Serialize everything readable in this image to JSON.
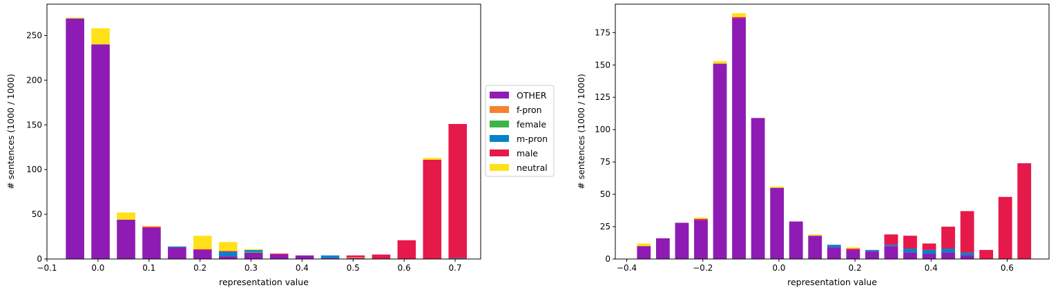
{
  "colors": {
    "OTHER": "#8e1cb4",
    "f-pron": "#f58231",
    "female": "#3cb44b",
    "m-pron": "#0782c8",
    "male": "#e6194b",
    "neutral": "#ffe119"
  },
  "legend": {
    "placement": "right of left chart",
    "entries": [
      "OTHER",
      "f-pron",
      "female",
      "m-pron",
      "male",
      "neutral"
    ]
  },
  "chart_data": [
    {
      "type": "bar",
      "stacked": true,
      "title": "",
      "xlabel": "representation value",
      "ylabel": "# sentences (1000 / 1000)",
      "xlim": [
        -0.1,
        0.75
      ],
      "ylim": [
        0,
        285
      ],
      "xticks": [
        "−0.1",
        "0.0",
        "0.1",
        "0.2",
        "0.3",
        "0.4",
        "0.5",
        "0.6",
        "0.7"
      ],
      "xtick_values": [
        -0.1,
        0.0,
        0.1,
        0.2,
        0.3,
        0.4,
        0.5,
        0.6,
        0.7
      ],
      "yticks": [
        "0",
        "50",
        "100",
        "150",
        "200",
        "250"
      ],
      "ytick_values": [
        0,
        50,
        100,
        150,
        200,
        250
      ],
      "bar_width": 0.036,
      "x": [
        -0.045,
        0.005,
        0.055,
        0.105,
        0.155,
        0.205,
        0.255,
        0.305,
        0.355,
        0.405,
        0.455,
        0.505,
        0.555,
        0.605,
        0.655,
        0.705
      ],
      "series": [
        {
          "name": "OTHER",
          "values": [
            269,
            240,
            44,
            35,
            13,
            10,
            3,
            7,
            5,
            4,
            1,
            1,
            0,
            0,
            0,
            0
          ]
        },
        {
          "name": "f-pron",
          "values": [
            0,
            0,
            0,
            0,
            0,
            0,
            0,
            0,
            0,
            0,
            0,
            1,
            0,
            0,
            0,
            0
          ]
        },
        {
          "name": "female",
          "values": [
            0,
            0,
            0,
            0,
            0,
            0,
            0,
            1,
            0,
            0,
            0,
            0,
            0,
            0,
            0,
            0
          ]
        },
        {
          "name": "m-pron",
          "values": [
            0,
            0,
            0,
            0,
            1,
            0,
            5,
            2,
            0,
            0,
            3,
            0,
            0,
            0,
            0,
            1
          ]
        },
        {
          "name": "male",
          "values": [
            0,
            0,
            0,
            1,
            0,
            1,
            1,
            0,
            1,
            0,
            0,
            2,
            5,
            21,
            111,
            150
          ]
        },
        {
          "name": "neutral",
          "values": [
            1,
            18,
            8,
            1,
            0,
            15,
            10,
            1,
            0,
            0,
            0,
            0,
            0,
            0,
            2,
            0
          ]
        }
      ]
    },
    {
      "type": "bar",
      "stacked": true,
      "title": "",
      "xlabel": "representation value",
      "ylabel": "# sentences (1000 / 1000)",
      "xlim": [
        -0.43,
        0.71
      ],
      "ylim": [
        0,
        197
      ],
      "xticks": [
        "−0.4",
        "−0.2",
        "0.0",
        "0.2",
        "0.4",
        "0.6"
      ],
      "xtick_values": [
        -0.4,
        -0.2,
        0.0,
        0.2,
        0.4,
        0.6
      ],
      "yticks": [
        "0",
        "25",
        "50",
        "75",
        "100",
        "125",
        "150",
        "175"
      ],
      "ytick_values": [
        0,
        25,
        50,
        75,
        100,
        125,
        150,
        175
      ],
      "bar_width": 0.036,
      "x": [
        -0.355,
        -0.305,
        -0.255,
        -0.205,
        -0.155,
        -0.105,
        -0.055,
        -0.005,
        0.045,
        0.095,
        0.145,
        0.195,
        0.245,
        0.295,
        0.345,
        0.395,
        0.445,
        0.495,
        0.545,
        0.595,
        0.645
      ],
      "series": [
        {
          "name": "OTHER",
          "values": [
            10,
            16,
            28,
            30,
            151,
            186,
            109,
            55,
            29,
            18,
            9,
            7,
            6,
            10,
            5,
            4,
            5,
            3,
            0,
            0,
            0
          ]
        },
        {
          "name": "f-pron",
          "values": [
            0,
            0,
            0,
            0,
            0,
            0,
            0,
            0,
            0,
            0,
            0,
            0,
            0,
            0,
            0,
            0,
            0,
            0,
            0,
            0,
            0
          ]
        },
        {
          "name": "female",
          "values": [
            0,
            0,
            0,
            0,
            0,
            0,
            0,
            0,
            0,
            0,
            0,
            0,
            0,
            0,
            0,
            0,
            0,
            0,
            0,
            0,
            0
          ]
        },
        {
          "name": "m-pron",
          "values": [
            0,
            0,
            0,
            0,
            0,
            0,
            0,
            0,
            0,
            0,
            2,
            0,
            1,
            1,
            3,
            3,
            3,
            2,
            0,
            0,
            0
          ]
        },
        {
          "name": "male",
          "values": [
            0,
            0,
            0,
            1,
            0,
            1,
            0,
            0,
            0,
            0,
            0,
            1,
            0,
            8,
            10,
            5,
            17,
            32,
            7,
            48,
            74
          ]
        },
        {
          "name": "neutral",
          "values": [
            2,
            0,
            0,
            1,
            2,
            3,
            0,
            1,
            0,
            1,
            0,
            1,
            0,
            0,
            0,
            0,
            0,
            0,
            0,
            0,
            0
          ]
        }
      ]
    }
  ]
}
